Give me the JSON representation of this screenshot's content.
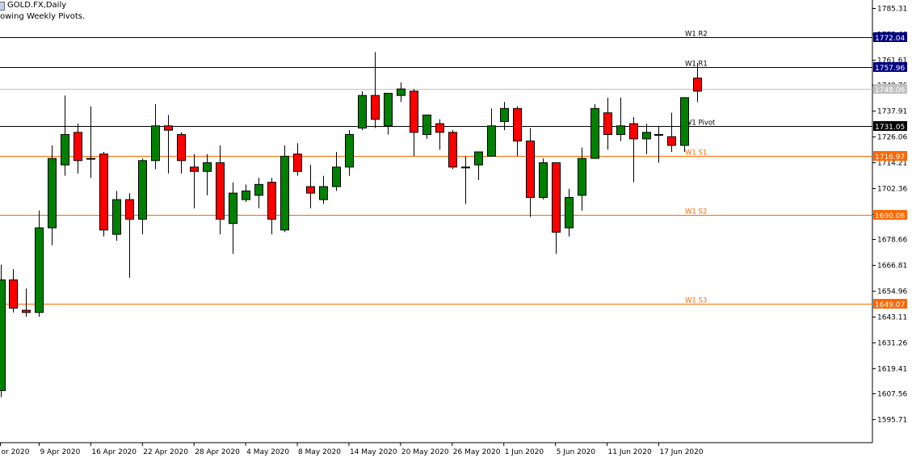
{
  "header": {
    "title": "GOLD.FX,Daily",
    "subtitle": "owing Weekly Pivots."
  },
  "colors": {
    "bull": "#008000",
    "bear": "#ff0000",
    "candle_outline": "#000000",
    "pivot_line": "#000000",
    "support_line": "#ff6600",
    "resistance_line": "#000000",
    "resistance_label": "#000080",
    "pivot_label": "#000000",
    "support_label": "#ff6600",
    "bid_line": "#c0c0c0",
    "bid_label": "#c0c0c0"
  },
  "chart_data": {
    "type": "candlestick",
    "symbol": "GOLD.FX",
    "timeframe": "Daily",
    "price_axis": {
      "ylim": [
        1585.0,
        1789.0
      ],
      "ticks": [
        "1785.31",
        "1773.46",
        "1761.61",
        "1749.76",
        "1737.91",
        "1726.06",
        "1714.21",
        "1702.36",
        "1690.51",
        "1678.66",
        "1666.81",
        "1654.96",
        "1643.11",
        "1631.26",
        "1619.41",
        "1607.56",
        "1595.71"
      ]
    },
    "date_labels": [
      {
        "index": 0,
        "label": "or 2020"
      },
      {
        "index": 3,
        "label": "9 Apr 2020"
      },
      {
        "index": 7,
        "label": "16 Apr 2020"
      },
      {
        "index": 11,
        "label": "22 Apr 2020"
      },
      {
        "index": 15,
        "label": "28 Apr 2020"
      },
      {
        "index": 19,
        "label": "4 May 2020"
      },
      {
        "index": 23,
        "label": "8 May 2020"
      },
      {
        "index": 27,
        "label": "14 May 2020"
      },
      {
        "index": 31,
        "label": "20 May 2020"
      },
      {
        "index": 35,
        "label": "26 May 2020"
      },
      {
        "index": 39,
        "label": "1 Jun 2020"
      },
      {
        "index": 43,
        "label": "5 Jun 2020"
      },
      {
        "index": 47,
        "label": "11 Jun 2020"
      },
      {
        "index": 51,
        "label": "17 Jun 2020"
      }
    ],
    "candles": [
      {
        "o": 1609.0,
        "h": 1667.0,
        "l": 1606.0,
        "c": 1660.0
      },
      {
        "o": 1660.0,
        "h": 1665.0,
        "l": 1645.0,
        "c": 1647.0
      },
      {
        "o": 1646.0,
        "h": 1656.0,
        "l": 1643.0,
        "c": 1645.0
      },
      {
        "o": 1645.0,
        "h": 1692.0,
        "l": 1643.0,
        "c": 1684.0
      },
      {
        "o": 1684.0,
        "h": 1722.0,
        "l": 1676.0,
        "c": 1716.0
      },
      {
        "o": 1713.0,
        "h": 1745.0,
        "l": 1708.0,
        "c": 1727.0
      },
      {
        "o": 1728.0,
        "h": 1732.0,
        "l": 1709.0,
        "c": 1715.0
      },
      {
        "o": 1716.0,
        "h": 1740.0,
        "l": 1707.0,
        "c": 1716.0
      },
      {
        "o": 1718.0,
        "h": 1719.0,
        "l": 1680.0,
        "c": 1683.0
      },
      {
        "o": 1681.0,
        "h": 1701.0,
        "l": 1678.0,
        "c": 1697.0
      },
      {
        "o": 1697.0,
        "h": 1700.0,
        "l": 1661.0,
        "c": 1688.0
      },
      {
        "o": 1688.0,
        "h": 1716.0,
        "l": 1681.0,
        "c": 1715.0
      },
      {
        "o": 1715.0,
        "h": 1741.0,
        "l": 1711.0,
        "c": 1731.0
      },
      {
        "o": 1731.0,
        "h": 1736.0,
        "l": 1709.0,
        "c": 1729.0
      },
      {
        "o": 1727.0,
        "h": 1728.0,
        "l": 1709.0,
        "c": 1715.0
      },
      {
        "o": 1712.0,
        "h": 1718.0,
        "l": 1693.0,
        "c": 1710.0
      },
      {
        "o": 1710.0,
        "h": 1718.0,
        "l": 1699.0,
        "c": 1714.0
      },
      {
        "o": 1714.0,
        "h": 1722.0,
        "l": 1681.0,
        "c": 1688.0
      },
      {
        "o": 1686.0,
        "h": 1705.0,
        "l": 1672.0,
        "c": 1700.0
      },
      {
        "o": 1697.0,
        "h": 1704.0,
        "l": 1696.0,
        "c": 1701.0
      },
      {
        "o": 1699.0,
        "h": 1707.0,
        "l": 1693.0,
        "c": 1704.0
      },
      {
        "o": 1705.0,
        "h": 1707.0,
        "l": 1681.0,
        "c": 1688.0
      },
      {
        "o": 1683.0,
        "h": 1722.0,
        "l": 1682.0,
        "c": 1717.0
      },
      {
        "o": 1718.0,
        "h": 1723.0,
        "l": 1708.0,
        "c": 1710.0
      },
      {
        "o": 1703.0,
        "h": 1713.0,
        "l": 1693.0,
        "c": 1700.0
      },
      {
        "o": 1697.0,
        "h": 1708.0,
        "l": 1695.0,
        "c": 1703.0
      },
      {
        "o": 1703.0,
        "h": 1719.0,
        "l": 1701.0,
        "c": 1712.0
      },
      {
        "o": 1712.0,
        "h": 1729.0,
        "l": 1708.0,
        "c": 1727.0
      },
      {
        "o": 1730.0,
        "h": 1747.0,
        "l": 1729.0,
        "c": 1745.0
      },
      {
        "o": 1745.0,
        "h": 1765.0,
        "l": 1730.0,
        "c": 1734.0
      },
      {
        "o": 1731.0,
        "h": 1746.0,
        "l": 1727.0,
        "c": 1746.0
      },
      {
        "o": 1745.0,
        "h": 1751.0,
        "l": 1742.0,
        "c": 1748.0
      },
      {
        "o": 1747.0,
        "h": 1748.0,
        "l": 1717.0,
        "c": 1728.0
      },
      {
        "o": 1727.0,
        "h": 1736.0,
        "l": 1725.0,
        "c": 1736.0
      },
      {
        "o": 1732.0,
        "h": 1734.0,
        "l": 1720.0,
        "c": 1728.0
      },
      {
        "o": 1728.0,
        "h": 1729.0,
        "l": 1711.0,
        "c": 1712.0
      },
      {
        "o": 1712.0,
        "h": 1717.0,
        "l": 1695.0,
        "c": 1712.0
      },
      {
        "o": 1713.0,
        "h": 1719.0,
        "l": 1706.0,
        "c": 1719.0
      },
      {
        "o": 1717.0,
        "h": 1739.0,
        "l": 1718.0,
        "c": 1731.0
      },
      {
        "o": 1733.0,
        "h": 1742.0,
        "l": 1729.0,
        "c": 1739.0
      },
      {
        "o": 1739.0,
        "h": 1740.0,
        "l": 1717.0,
        "c": 1724.0
      },
      {
        "o": 1724.0,
        "h": 1730.0,
        "l": 1689.0,
        "c": 1698.0
      },
      {
        "o": 1698.0,
        "h": 1716.0,
        "l": 1697.0,
        "c": 1714.0
      },
      {
        "o": 1714.0,
        "h": 1714.0,
        "l": 1672.0,
        "c": 1682.0
      },
      {
        "o": 1684.0,
        "h": 1702.0,
        "l": 1680.0,
        "c": 1698.0
      },
      {
        "o": 1699.0,
        "h": 1721.0,
        "l": 1692.0,
        "c": 1716.0
      },
      {
        "o": 1716.0,
        "h": 1741.0,
        "l": 1716.0,
        "c": 1739.0
      },
      {
        "o": 1737.0,
        "h": 1744.0,
        "l": 1720.0,
        "c": 1727.0
      },
      {
        "o": 1727.0,
        "h": 1744.0,
        "l": 1724.0,
        "c": 1731.0
      },
      {
        "o": 1732.0,
        "h": 1735.0,
        "l": 1705.0,
        "c": 1725.0
      },
      {
        "o": 1725.0,
        "h": 1732.0,
        "l": 1718.0,
        "c": 1728.0
      },
      {
        "o": 1727.0,
        "h": 1731.0,
        "l": 1714.0,
        "c": 1727.0
      },
      {
        "o": 1726.0,
        "h": 1737.0,
        "l": 1719.0,
        "c": 1722.0
      },
      {
        "o": 1722.0,
        "h": 1744.0,
        "l": 1719.0,
        "c": 1744.0
      },
      {
        "o": 1753.0,
        "h": 1760.0,
        "l": 1742.0,
        "c": 1747.0
      }
    ],
    "pivots": [
      {
        "name": "W1 R2",
        "value": 1772.04,
        "label": "1772.04",
        "kind": "resistance"
      },
      {
        "name": "W1 R1",
        "value": 1757.96,
        "label": "1757.96",
        "kind": "resistance"
      },
      {
        "name": "W1 Pivot",
        "value": 1731.05,
        "label": "1731.05",
        "kind": "pivot"
      },
      {
        "name": "W1 S1",
        "value": 1716.97,
        "label": "1716.97",
        "kind": "support"
      },
      {
        "name": "W1 S2",
        "value": 1690.06,
        "label": "1690.06",
        "kind": "support"
      },
      {
        "name": "W1 S3",
        "value": 1649.07,
        "label": "1649.07",
        "kind": "support"
      }
    ],
    "current_price": {
      "value": 1748.06,
      "label": "1748.06"
    }
  }
}
